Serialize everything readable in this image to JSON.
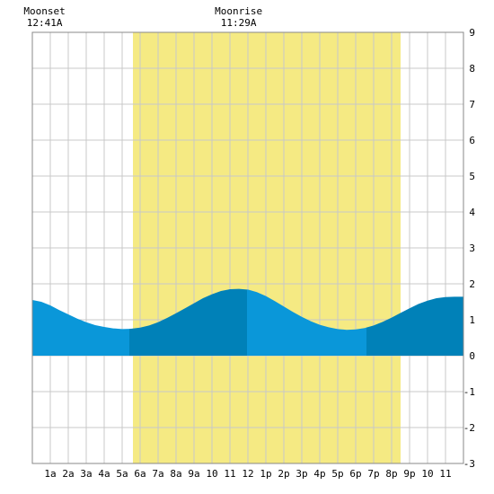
{
  "chart_data": {
    "type": "area",
    "title": "",
    "xlabel": "",
    "ylabel": "",
    "x_ticks": [
      "1a",
      "2a",
      "3a",
      "4a",
      "5a",
      "6a",
      "7a",
      "8a",
      "9a",
      "10",
      "11",
      "12",
      "1p",
      "2p",
      "3p",
      "4p",
      "5p",
      "6p",
      "7p",
      "8p",
      "9p",
      "10",
      "11"
    ],
    "y_ticks": [
      -3,
      -2,
      -1,
      0,
      1,
      2,
      3,
      4,
      5,
      6,
      7,
      8,
      9
    ],
    "xlim": [
      0,
      24
    ],
    "ylim": [
      -3,
      9
    ],
    "grid": true,
    "daylight": {
      "start_hour": 5.6,
      "end_hour": 20.5
    },
    "series": [
      {
        "values": [
          [
            0,
            1.55
          ],
          [
            0.5,
            1.5
          ],
          [
            1,
            1.4
          ],
          [
            1.5,
            1.27
          ],
          [
            2,
            1.15
          ],
          [
            2.5,
            1.03
          ],
          [
            3,
            0.93
          ],
          [
            3.5,
            0.85
          ],
          [
            4,
            0.8
          ],
          [
            4.5,
            0.76
          ],
          [
            5,
            0.74
          ],
          [
            5.5,
            0.75
          ],
          [
            6,
            0.78
          ],
          [
            6.5,
            0.84
          ],
          [
            7,
            0.93
          ],
          [
            7.5,
            1.05
          ],
          [
            8,
            1.18
          ],
          [
            8.5,
            1.32
          ],
          [
            9,
            1.46
          ],
          [
            9.5,
            1.6
          ],
          [
            10,
            1.71
          ],
          [
            10.5,
            1.8
          ],
          [
            11,
            1.85
          ],
          [
            11.5,
            1.86
          ],
          [
            12,
            1.84
          ],
          [
            12.5,
            1.77
          ],
          [
            13,
            1.66
          ],
          [
            13.5,
            1.52
          ],
          [
            14,
            1.37
          ],
          [
            14.5,
            1.22
          ],
          [
            15,
            1.08
          ],
          [
            15.5,
            0.96
          ],
          [
            16,
            0.86
          ],
          [
            16.5,
            0.79
          ],
          [
            17,
            0.74
          ],
          [
            17.5,
            0.72
          ],
          [
            18,
            0.73
          ],
          [
            18.5,
            0.77
          ],
          [
            19,
            0.84
          ],
          [
            19.5,
            0.94
          ],
          [
            20,
            1.06
          ],
          [
            20.5,
            1.19
          ],
          [
            21,
            1.32
          ],
          [
            21.5,
            1.44
          ],
          [
            22,
            1.53
          ],
          [
            22.5,
            1.6
          ],
          [
            23,
            1.63
          ],
          [
            23.5,
            1.64
          ],
          [
            24,
            1.64
          ]
        ],
        "bands": [
          {
            "from": 0,
            "to": 5.4,
            "shade": "light"
          },
          {
            "from": 5.4,
            "to": 11.95,
            "shade": "dark"
          },
          {
            "from": 11.95,
            "to": 18.6,
            "shade": "light"
          },
          {
            "from": 18.6,
            "to": 24,
            "shade": "dark"
          }
        ]
      }
    ],
    "moon_events": [
      {
        "label": "Moonset",
        "time": "12:41A",
        "hour": 0.68
      },
      {
        "label": "Moonrise",
        "time": "11:29A",
        "hour": 11.48
      }
    ],
    "colors": {
      "daylight": "#f5ea83",
      "water_light": "#0a97d9",
      "water_dark": "#0081b8",
      "grid": "#c8c8c8",
      "frame": "#888888"
    }
  }
}
